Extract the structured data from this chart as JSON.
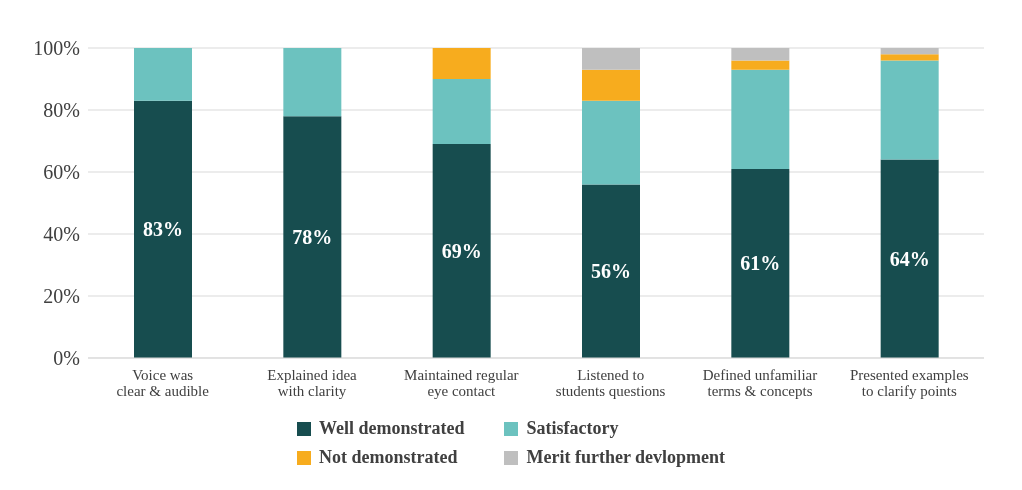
{
  "chart_data": {
    "type": "bar",
    "stacked": true,
    "categories": [
      "Voice was clear & audible",
      "Explained idea with clarity",
      "Maintained regular eye contact",
      "Listened to students questions",
      "Defined unfamiliar terms & concepts",
      "Presented examples to clarify points"
    ],
    "series": [
      {
        "name": "Well demonstrated",
        "color": "#174d4f",
        "values": [
          83,
          78,
          69,
          56,
          61,
          64
        ],
        "value_labels": [
          "83%",
          "78%",
          "69%",
          "56%",
          "61%",
          "64%"
        ]
      },
      {
        "name": "Satisfactory",
        "color": "#6cc2bf",
        "values": [
          17,
          22,
          21,
          27,
          32,
          32
        ]
      },
      {
        "name": "Not demonstrated",
        "color": "#f7ac1e",
        "values": [
          0,
          0,
          10,
          10,
          3,
          2
        ]
      },
      {
        "name": "Merit further  devlopment",
        "color": "#bfbfbf",
        "values": [
          0,
          0,
          0,
          7,
          4,
          2
        ]
      }
    ],
    "ylim": [
      0,
      100
    ],
    "yticks": [
      {
        "value": 0,
        "label": "0%"
      },
      {
        "value": 20,
        "label": "20%"
      },
      {
        "value": 40,
        "label": "40%"
      },
      {
        "value": 60,
        "label": "60%"
      },
      {
        "value": 80,
        "label": "80%"
      },
      {
        "value": 100,
        "label": "100%"
      }
    ],
    "grid": "y",
    "legend": "bottom"
  }
}
